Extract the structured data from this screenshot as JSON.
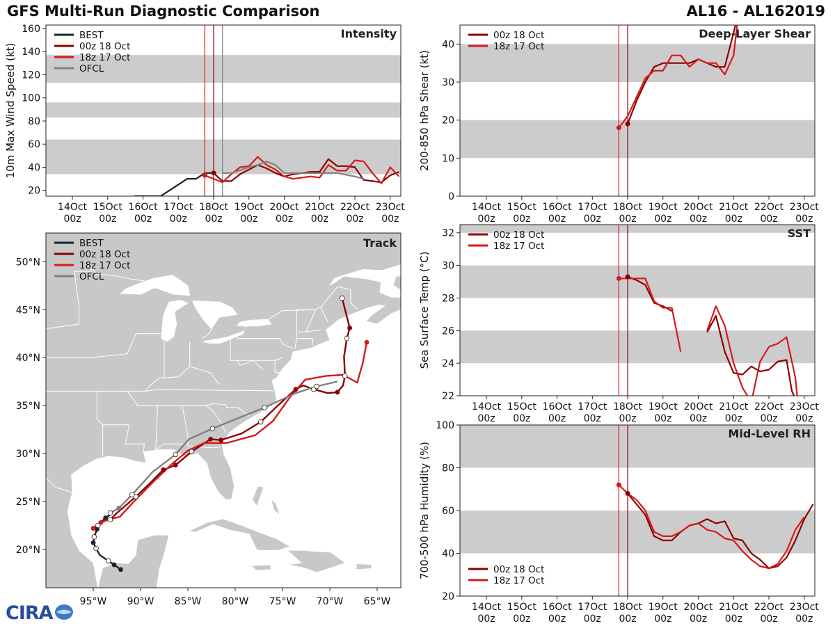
{
  "header": {
    "title_left": "GFS Multi-Run Diagnostic Comparison",
    "title_right": "AL16 - AL162019"
  },
  "logo": {
    "name": "CIRA"
  },
  "colors": {
    "best": "#222222",
    "run00": "#8b0000",
    "run18": "#d7191c",
    "ofcl": "#808080",
    "band": "#cccccc",
    "land": "#c8c8c8",
    "vline_00": "#8b0000",
    "vline_18": "#d7191c",
    "vline_ofcl": "#808080"
  },
  "time_axis": {
    "tick_labels": [
      {
        "day": "14Oct",
        "hour": "00z"
      },
      {
        "day": "15Oct",
        "hour": "00z"
      },
      {
        "day": "16Oct",
        "hour": "00z"
      },
      {
        "day": "17Oct",
        "hour": "00z"
      },
      {
        "day": "18Oct",
        "hour": "00z"
      },
      {
        "day": "19Oct",
        "hour": "00z"
      },
      {
        "day": "20Oct",
        "hour": "00z"
      },
      {
        "day": "21Oct",
        "hour": "00z"
      },
      {
        "day": "22Oct",
        "hour": "00z"
      },
      {
        "day": "23Oct",
        "hour": "00z"
      }
    ],
    "range_days": [
      -0.75,
      9.3
    ],
    "init_lines_days": {
      "run18": 3.75,
      "run00": 4.0,
      "ofcl": 4.25
    }
  },
  "chart_data": [
    {
      "id": "intensity",
      "type": "line",
      "title": "Intensity",
      "xlabel": "",
      "ylabel": "10m Max Wind Speed (kt)",
      "ylim": [
        15,
        163
      ],
      "yticks": [
        20,
        40,
        60,
        80,
        100,
        120,
        140,
        160
      ],
      "bands": [
        [
          34,
          64
        ],
        [
          83,
          96
        ],
        [
          113,
          137
        ]
      ],
      "legend": [
        "BEST",
        "00z 18 Oct",
        "18z 17 Oct",
        "OFCL"
      ],
      "series": [
        {
          "name": "BEST",
          "key": "best",
          "x": [
            1.75,
            2.5,
            2.75,
            3.0,
            3.25,
            3.5,
            3.75,
            4.0
          ],
          "y": [
            15,
            15,
            20,
            25,
            30,
            30,
            35,
            35
          ]
        },
        {
          "name": "00z 18 Oct",
          "key": "run00",
          "x": [
            4.0,
            4.25,
            4.5,
            4.75,
            5.0,
            5.25,
            5.5,
            5.75,
            6.0,
            6.25,
            6.5,
            6.75,
            7.0,
            7.25,
            7.5,
            7.75,
            8.0,
            8.25,
            8.5,
            8.75,
            9.0,
            9.25
          ],
          "y": [
            35,
            28,
            28,
            34,
            38,
            42,
            39,
            35,
            32,
            34,
            35,
            36,
            36,
            47,
            41,
            41,
            40,
            29,
            28,
            27,
            33,
            36
          ]
        },
        {
          "name": "18z 17 Oct",
          "key": "run18",
          "x": [
            3.75,
            4.0,
            4.25,
            4.5,
            4.75,
            5.0,
            5.25,
            5.5,
            5.75,
            6.0,
            6.25,
            6.5,
            6.75,
            7.0,
            7.25,
            7.5,
            7.75,
            8.0,
            8.25,
            8.5,
            8.75,
            9.0,
            9.25
          ],
          "y": [
            33,
            30,
            27,
            34,
            40,
            41,
            49,
            42,
            38,
            32,
            30,
            31,
            32,
            31,
            42,
            37,
            37,
            46,
            45,
            35,
            26,
            40,
            32
          ]
        },
        {
          "name": "OFCL",
          "key": "ofcl",
          "x": [
            4.25,
            4.5,
            5.0,
            5.25,
            5.5,
            5.75,
            6.0,
            6.25,
            6.5,
            7.0,
            7.5,
            8.0,
            8.25
          ],
          "y": [
            35,
            35,
            40,
            42,
            45,
            42,
            35,
            35,
            35,
            35,
            35,
            32,
            30
          ]
        }
      ]
    },
    {
      "id": "shear",
      "type": "line",
      "title": "Deep-Layer Shear",
      "xlabel": "",
      "ylabel": "200-850 hPa Shear (kt)",
      "ylim": [
        0,
        45
      ],
      "yticks": [
        0,
        10,
        20,
        30,
        40
      ],
      "bands": [
        [
          10,
          20
        ],
        [
          30,
          40
        ]
      ],
      "legend": [
        "00z 18 Oct",
        "18z 17 Oct"
      ],
      "series": [
        {
          "name": "00z 18 Oct",
          "key": "run00",
          "x": [
            4.0,
            4.25,
            4.5,
            4.75,
            5.0,
            5.25,
            5.5,
            5.75,
            6.0,
            6.25,
            6.5,
            6.75,
            7.0,
            7.05
          ],
          "y": [
            19,
            25,
            30,
            34,
            35,
            35,
            35,
            35,
            36,
            35,
            34,
            34,
            43,
            45
          ]
        },
        {
          "name": "18z 17 Oct",
          "key": "run18",
          "x": [
            3.75,
            4.0,
            4.25,
            4.5,
            4.75,
            5.0,
            5.25,
            5.5,
            5.75,
            6.0,
            6.25,
            6.5,
            6.75,
            7.0,
            7.1
          ],
          "y": [
            18,
            21,
            26,
            31,
            33,
            33,
            37,
            37,
            34,
            36,
            35,
            35,
            32,
            37,
            45
          ]
        }
      ]
    },
    {
      "id": "sst",
      "type": "line",
      "title": "SST",
      "xlabel": "",
      "ylabel": "Sea Surface Temp (°C)",
      "ylim": [
        22,
        32.5
      ],
      "yticks": [
        22,
        24,
        26,
        28,
        30,
        32
      ],
      "bands": [
        [
          24,
          26
        ],
        [
          28,
          30
        ],
        [
          32,
          32.5
        ]
      ],
      "legend": [
        "00z 18 Oct",
        "18z 17 Oct"
      ],
      "series": [
        {
          "name": "00z 18 Oct",
          "key": "run00",
          "x": [
            4.0,
            4.25,
            4.5,
            4.75,
            5.0,
            5.25
          ],
          "y": [
            29.3,
            29.1,
            28.8,
            27.7,
            27.5,
            27.2
          ]
        },
        {
          "name": "00z 18 Oct (cont.)",
          "key": "run00",
          "x": [
            6.25,
            6.5,
            6.75,
            7.0,
            7.25,
            7.5,
            7.75,
            8.0,
            8.25,
            8.5,
            8.65,
            8.75
          ],
          "y": [
            25.9,
            26.9,
            24.7,
            23.4,
            23.3,
            23.8,
            23.5,
            23.6,
            24.1,
            24.2,
            22.3,
            21.8
          ]
        },
        {
          "name": "18z 17 Oct",
          "key": "run18",
          "x": [
            3.75,
            4.0,
            4.25,
            4.5,
            4.75,
            5.0,
            5.25,
            5.5
          ],
          "y": [
            29.2,
            29.2,
            29.2,
            29.2,
            27.8,
            27.4,
            27.4,
            24.7
          ]
        },
        {
          "name": "18z 17 Oct (cont.)",
          "key": "run18",
          "x": [
            6.25,
            6.5,
            6.75,
            7.0,
            7.25,
            7.5,
            7.75,
            8.0,
            8.25,
            8.5,
            8.75,
            8.8
          ],
          "y": [
            26.0,
            27.5,
            26.3,
            24.0,
            22.5,
            21.6,
            24.1,
            25.0,
            25.2,
            25.6,
            23.1,
            22.0
          ]
        }
      ]
    },
    {
      "id": "rh",
      "type": "line",
      "title": "Mid-Level RH",
      "xlabel": "",
      "ylabel": "700-500 hPa Humidity (%)",
      "ylim": [
        20,
        100
      ],
      "yticks": [
        20,
        40,
        60,
        80,
        100
      ],
      "bands": [
        [
          40,
          60
        ],
        [
          80,
          100
        ]
      ],
      "legend": [
        "00z 18 Oct",
        "18z 17 Oct"
      ],
      "series": [
        {
          "name": "00z 18 Oct",
          "key": "run00",
          "x": [
            4.0,
            4.25,
            4.5,
            4.75,
            5.0,
            5.25,
            5.5,
            5.75,
            6.0,
            6.25,
            6.5,
            6.75,
            7.0,
            7.25,
            7.5,
            7.75,
            8.0,
            8.25,
            8.5,
            8.75,
            9.0,
            9.25
          ],
          "y": [
            68,
            63,
            58,
            48,
            46,
            46,
            50,
            53,
            54,
            56,
            54,
            55,
            47,
            46,
            40,
            37,
            33,
            34,
            38,
            46,
            56,
            63
          ]
        },
        {
          "name": "18z 17 Oct",
          "key": "run18",
          "x": [
            3.75,
            4.0,
            4.25,
            4.5,
            4.75,
            5.0,
            5.25,
            5.5,
            5.75,
            6.0,
            6.25,
            6.5,
            6.75,
            7.0,
            7.25,
            7.5,
            7.75,
            8.0,
            8.25,
            8.5,
            8.75,
            9.0
          ],
          "y": [
            72,
            68,
            65,
            60,
            50,
            48,
            48,
            50,
            53,
            54,
            51,
            50,
            47,
            46,
            41,
            37,
            34,
            33,
            35,
            41,
            51,
            57
          ]
        }
      ]
    },
    {
      "id": "track",
      "type": "scatter",
      "title": "Track",
      "xlabel": "",
      "ylabel": "",
      "xlim": [
        -100,
        -62.5
      ],
      "ylim": [
        16,
        53
      ],
      "xtick_labels": [
        {
          "value": -95,
          "label": "95°W"
        },
        {
          "value": -90,
          "label": "90°W"
        },
        {
          "value": -85,
          "label": "85°W"
        },
        {
          "value": -80,
          "label": "80°W"
        },
        {
          "value": -75,
          "label": "75°W"
        },
        {
          "value": -70,
          "label": "70°W"
        },
        {
          "value": -65,
          "label": "65°W"
        }
      ],
      "ytick_labels": [
        {
          "value": 20,
          "label": "20°N"
        },
        {
          "value": 25,
          "label": "25°N"
        },
        {
          "value": 30,
          "label": "30°N"
        },
        {
          "value": 35,
          "label": "35°N"
        },
        {
          "value": 40,
          "label": "40°N"
        },
        {
          "value": 45,
          "label": "45°N"
        },
        {
          "value": 50,
          "label": "50°N"
        }
      ],
      "legend": [
        "BEST",
        "00z 18 Oct",
        "18z 17 Oct",
        "OFCL"
      ],
      "series": [
        {
          "name": "BEST",
          "key": "best",
          "lon": [
            -92.1,
            -92.8,
            -93.4,
            -94.3,
            -94.7,
            -95.0,
            -94.9,
            -94.6,
            -94.5,
            -94.1,
            -93.7,
            -93.2
          ],
          "lat": [
            17.9,
            18.4,
            18.8,
            19.4,
            20.1,
            20.7,
            21.3,
            22.1,
            22.5,
            22.9,
            23.3,
            23.6
          ],
          "filled": [
            true,
            true,
            false,
            false,
            false,
            true,
            false,
            true,
            false,
            false,
            true,
            false
          ]
        },
        {
          "name": "00z 18 Oct",
          "key": "run00",
          "lon": [
            -93.2,
            -92.5,
            -90.5,
            -88.8,
            -87.6,
            -86.3,
            -84.6,
            -82.6,
            -81.5,
            -79.3,
            -77.3,
            -75.5,
            -73.6,
            -72.8,
            -71.7,
            -70.2,
            -69.2,
            -68.6,
            -68.4,
            -68.5,
            -68.2,
            -67.9,
            -68.7
          ],
          "lat": [
            23.1,
            23.8,
            25.5,
            27.1,
            28.3,
            28.8,
            30.2,
            31.5,
            31.4,
            32.1,
            33.3,
            35.0,
            36.7,
            37.1,
            36.7,
            36.3,
            36.4,
            37.1,
            38.1,
            40.1,
            42.0,
            43.1,
            46.2
          ],
          "filled": [
            false,
            false,
            false,
            false,
            true,
            true,
            false,
            true,
            true,
            false,
            false,
            false,
            true,
            false,
            false,
            false,
            true,
            false,
            false,
            false,
            false,
            true,
            false
          ]
        },
        {
          "name": "18z 17 Oct",
          "key": "run18",
          "lon": [
            -95.0,
            -94.2,
            -93.4,
            -92.2,
            -90.5,
            -88.6,
            -86.8,
            -85.0,
            -83.3,
            -80.9,
            -77.9,
            -76.0,
            -74.2,
            -72.6,
            -70.4,
            -68.6,
            -67.1,
            -66.5,
            -66.1
          ],
          "lat": [
            22.2,
            22.8,
            23.1,
            23.4,
            25.2,
            27.1,
            28.8,
            30.3,
            31.1,
            31.1,
            31.9,
            33.4,
            35.9,
            37.7,
            38.1,
            38.2,
            37.4,
            39.5,
            41.6
          ],
          "filled": [
            true,
            true,
            false,
            false,
            false,
            false,
            false,
            false,
            false,
            false,
            false,
            false,
            false,
            false,
            false,
            false,
            false,
            false,
            true
          ]
        },
        {
          "name": "OFCL",
          "key": "ofcl",
          "lon": [
            -93.2,
            -92.3,
            -90.9,
            -88.7,
            -86.3,
            -84.9,
            -82.4,
            -79.9,
            -76.9,
            -73.6,
            -71.4,
            -69.2
          ],
          "lat": [
            23.8,
            24.3,
            25.7,
            28.1,
            29.9,
            31.5,
            32.6,
            33.6,
            34.8,
            36.3,
            37.0,
            37.5
          ],
          "filled": [
            false,
            true,
            false,
            false,
            false,
            false,
            false,
            false,
            false,
            false,
            false,
            false
          ]
        }
      ]
    }
  ]
}
